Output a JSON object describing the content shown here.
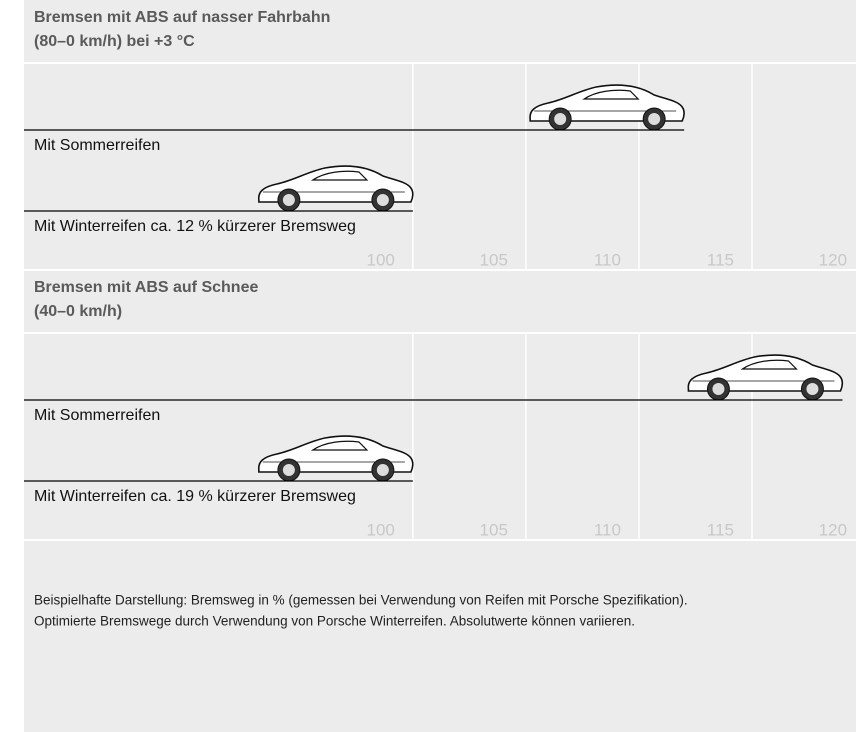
{
  "charts": [
    {
      "type": "bar",
      "orientation": "horizontal",
      "title": "Bremsen mit ABS auf nasser Fahrbahn",
      "subtitle": "(80–0 km/h) bei +3 °C",
      "categories": [
        "Mit Sommerreifen",
        "Mit Winterreifen ca. 12 % kürzerer Bremsweg"
      ],
      "values": [
        112,
        100
      ],
      "color": "#000000",
      "xlim": [
        82.8,
        119.6
      ],
      "xticks": [
        100,
        105,
        110,
        115,
        120
      ],
      "grid": true
    },
    {
      "type": "bar",
      "orientation": "horizontal",
      "title": "Bremsen mit ABS auf Schnee",
      "subtitle": "(40–0 km/h)",
      "categories": [
        "Mit Sommerreifen",
        "Mit Winterreifen ca. 19 % kürzerer Bremsweg"
      ],
      "values": [
        119,
        100
      ],
      "color": "#000000",
      "xlim": [
        82.8,
        119.6
      ],
      "xticks": [
        100,
        105,
        110,
        115,
        120
      ],
      "grid": true
    }
  ],
  "notes": [
    "Beispielhafte Darstellung: Bremsweg in % (gemessen bei Verwendung von Reifen mit Porsche Spezifikation).",
    "Optimierte Bremswege durch Verwendung von Porsche Winterreifen. Absolutwerte können variieren."
  ]
}
